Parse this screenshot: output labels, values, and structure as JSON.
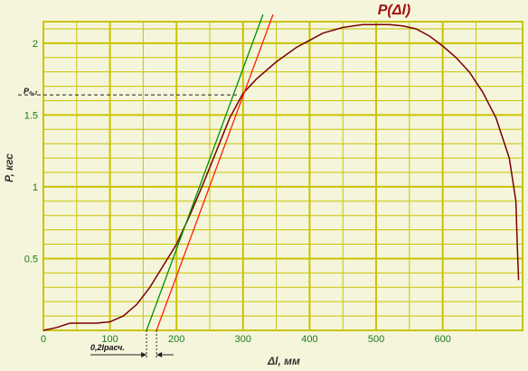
{
  "chart_data": {
    "type": "line",
    "title": "P(Δl)",
    "xlabel": "Δl, мм",
    "ylabel": "P, кгс",
    "xlim": [
      0,
      720
    ],
    "ylim": [
      0,
      2.15
    ],
    "x_ticks": [
      0,
      100,
      200,
      300,
      400,
      500,
      600
    ],
    "y_ticks": [
      0.5,
      1,
      1.5,
      2
    ],
    "x_tick_labels": [
      "0",
      "100",
      "200",
      "300",
      "400",
      "500",
      "600"
    ],
    "y_tick_labels": [
      "0.5",
      "1",
      "1.5",
      "2"
    ],
    "grid": true,
    "series": [
      {
        "color": "#7a0000",
        "x": [
          0,
          20,
          40,
          60,
          80,
          100,
          120,
          140,
          160,
          180,
          200,
          220,
          240,
          260,
          280,
          300,
          320,
          350,
          380,
          400,
          420,
          450,
          480,
          500,
          520,
          540,
          560,
          580,
          600,
          620,
          640,
          660,
          680,
          700,
          705,
          710,
          712,
          714
        ],
        "y": [
          0,
          0.02,
          0.05,
          0.05,
          0.05,
          0.06,
          0.1,
          0.18,
          0.3,
          0.45,
          0.6,
          0.8,
          1.02,
          1.25,
          1.48,
          1.65,
          1.75,
          1.87,
          1.97,
          2.02,
          2.07,
          2.11,
          2.13,
          2.13,
          2.13,
          2.12,
          2.1,
          2.05,
          1.98,
          1.9,
          1.8,
          1.66,
          1.48,
          1.2,
          1.05,
          0.9,
          0.6,
          0.35
        ]
      },
      {
        "color": "#009000",
        "x": [
          155,
          330
        ],
        "y": [
          0,
          2.2
        ]
      },
      {
        "color": "#ff2000",
        "x": [
          170,
          345
        ],
        "y": [
          0,
          2.2
        ]
      }
    ],
    "annotations": [
      {
        "text": "P₀,₂",
        "kind": "horizontal-dashed",
        "y": 1.64,
        "x_end": 295
      },
      {
        "text": "0,2lрасч.",
        "kind": "offset-arrows",
        "x_from": 155,
        "x_to": 170
      }
    ]
  },
  "colors": {
    "background": "#f5f5dc",
    "grid": "#c8c400",
    "tick_text": "#1a7a1a",
    "title": "#a01010"
  }
}
